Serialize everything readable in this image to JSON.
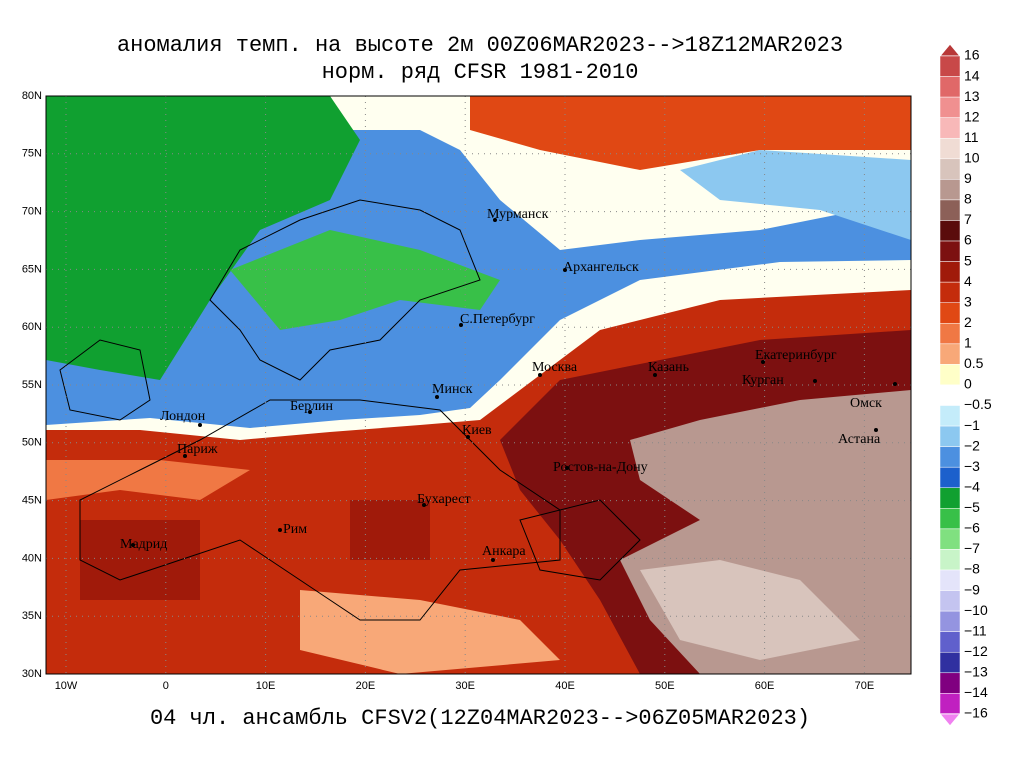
{
  "title": "аномалия темп. на высоте 2м 00Z06MAR2023-->18Z12MAR2023",
  "subtitle": "норм. ряд CFSR 1981-2010",
  "footer": "04 чл. ансамбль CFSV2(12Z04MAR2023-->06Z05MAR2023)",
  "lat_labels": [
    "80N",
    "75N",
    "70N",
    "65N",
    "60N",
    "55N",
    "50N",
    "45N",
    "40N",
    "35N",
    "30N"
  ],
  "lon_labels": [
    "10W",
    "0",
    "10E",
    "20E",
    "30E",
    "40E",
    "50E",
    "60E",
    "70E"
  ],
  "cities": [
    "Мурманск",
    "Архангельск",
    "С.Петербург",
    "Москва",
    "Казань",
    "Екатеринбург",
    "Курган",
    "Омск",
    "Астана",
    "Минск",
    "Киев",
    "Берлин",
    "Лондон",
    "Париж",
    "Ростов-на-Дону",
    "Бухарест",
    "Рим",
    "Мадрид",
    "Анкара"
  ],
  "colorbar": {
    "labels": [
      "16",
      "14",
      "13",
      "12",
      "11",
      "10",
      "9",
      "8",
      "7",
      "6",
      "5",
      "4",
      "3",
      "2",
      "1",
      "0.5",
      "0",
      "−0.5",
      "−1",
      "−2",
      "−3",
      "−4",
      "−5",
      "−6",
      "−7",
      "−8",
      "−9",
      "−10",
      "−11",
      "−12",
      "−13",
      "−14",
      "−16"
    ],
    "colors": [
      "#b83838",
      "#c84848",
      "#e06868",
      "#f09090",
      "#f8b8b8",
      "#f0dcd4",
      "#d8c4bc",
      "#b89890",
      "#8c6058",
      "#5a0c0c",
      "#7c1010",
      "#a01a0a",
      "#c42c0c",
      "#e04814",
      "#f07844",
      "#f8a878",
      "#ffffc8",
      "#ffffff",
      "#c4ecfa",
      "#8cc8f0",
      "#4c90e0",
      "#1c60cc",
      "#10a030",
      "#38c048",
      "#80e080",
      "#c8f4c8",
      "#e4e4fa",
      "#c4c4f0",
      "#9494e0",
      "#6060cc",
      "#3030a0",
      "#800080",
      "#c020c0",
      "#f080f0"
    ]
  }
}
